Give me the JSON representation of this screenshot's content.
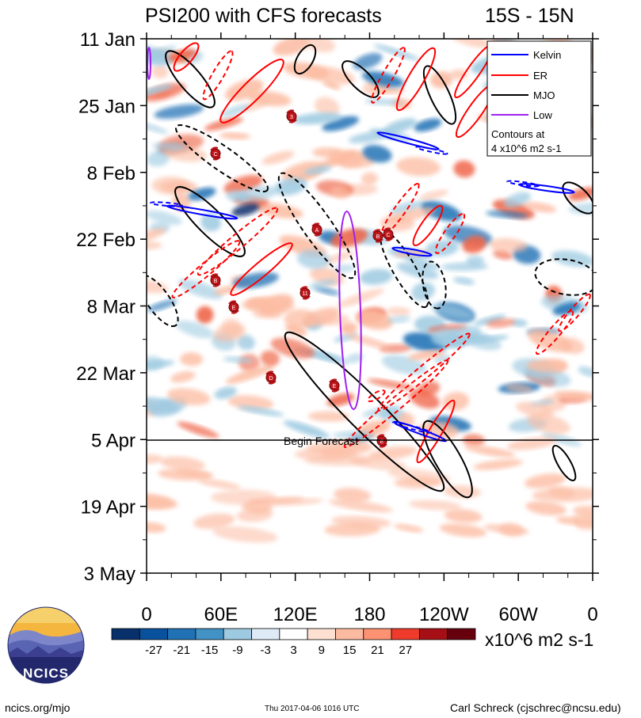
{
  "title_left": "PSI200 with CFS forecasts",
  "title_right": "15S - 15N",
  "begin_forecast_label": "Begin Forecast",
  "units_label": "x10^6 m2 s-1",
  "footer": {
    "left": "ncics.org/mjo",
    "center": "Thu 2017-04-06 1016 UTC",
    "right": "Carl Schreck (cjschrec@ncsu.edu)"
  },
  "logo": {
    "text": "NCICS"
  },
  "legend": {
    "items": [
      {
        "label": "Kelvin",
        "color": "#0000ff"
      },
      {
        "label": "ER",
        "color": "#ff0000"
      },
      {
        "label": "MJO",
        "color": "#000000"
      },
      {
        "label": "Low",
        "color": "#a020f0"
      }
    ],
    "note_line1": "Contours at",
    "note_line2": "4 x10^6 m2 s-1"
  },
  "colors": {
    "neg_strong": "#08306b",
    "neg_mid": "#2171b5",
    "neg_light": "#9ecae1",
    "pos_light": "#fcbba1",
    "pos_mid": "#ef6548",
    "pos_strong": "#67000d"
  },
  "chart_data": {
    "type": "heatmap",
    "title": "PSI200 with CFS forecasts",
    "region": "15S - 15N",
    "x_axis": {
      "ticks": [
        "0",
        "60E",
        "120E",
        "180",
        "120W",
        "60W",
        "0"
      ],
      "range": [
        "0",
        "0"
      ]
    },
    "y_axis": {
      "ticks": [
        "11 Jan",
        "25 Jan",
        "8 Feb",
        "22 Feb",
        "8 Mar",
        "22 Mar",
        "5 Apr",
        "19 Apr",
        "3 May"
      ],
      "range": [
        "11 Jan",
        "3 May"
      ]
    },
    "forecast_start": "5 Apr",
    "colorbar": {
      "levels": [
        "-27",
        "-21",
        "-15",
        "-9",
        "-3",
        "3",
        "9",
        "15",
        "21",
        "27"
      ],
      "colors": [
        "#08306b",
        "#08519c",
        "#2171b5",
        "#4292c6",
        "#9ecae1",
        "#deebf7",
        "#ffffff",
        "#fee0d2",
        "#fcbba1",
        "#fc9272",
        "#ef3b2c",
        "#a50f15",
        "#67000d"
      ],
      "units": "x10^6 m2 s-1"
    },
    "contour_interval": "4 x10^6 m2 s-1",
    "series": [
      {
        "name": "Kelvin",
        "color": "#0000ff"
      },
      {
        "name": "ER",
        "color": "#ff0000"
      },
      {
        "name": "MJO",
        "color": "#000000"
      },
      {
        "name": "Low",
        "color": "#a020f0"
      }
    ],
    "storm_markers": [
      "3",
      "C",
      "A",
      "B",
      "E",
      "11",
      "B",
      "C",
      "D",
      "E",
      "E"
    ]
  }
}
